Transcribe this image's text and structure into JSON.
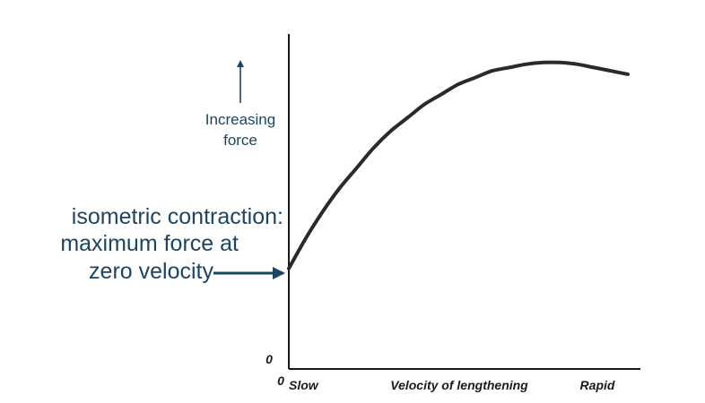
{
  "chart_data": {
    "type": "line",
    "xlabel": "Velocity of lengthening",
    "ylabel": [
      "Increasing",
      "force"
    ],
    "x_tick_labels": [
      "Slow",
      "Rapid"
    ],
    "origin_labels": {
      "x": "0",
      "y": "0"
    },
    "xlim": [
      0,
      1
    ],
    "ylim": [
      0,
      1
    ],
    "series": [
      {
        "x": [
          0,
          0.05,
          0.1,
          0.15,
          0.2,
          0.25,
          0.3,
          0.35,
          0.4,
          0.45,
          0.5,
          0.55,
          0.6,
          0.65,
          0.7,
          0.75,
          0.8,
          0.85,
          0.9,
          0.95,
          1.0
        ],
        "y": [
          0.3,
          0.39,
          0.47,
          0.54,
          0.6,
          0.66,
          0.71,
          0.75,
          0.79,
          0.82,
          0.85,
          0.87,
          0.89,
          0.9,
          0.91,
          0.915,
          0.915,
          0.91,
          0.9,
          0.89,
          0.88
        ]
      }
    ],
    "annotation": {
      "lines": [
        "isometric contraction:",
        "maximum force at",
        "zero velocity"
      ],
      "target": {
        "x": 0,
        "y": 0.3
      }
    },
    "grid": false
  }
}
